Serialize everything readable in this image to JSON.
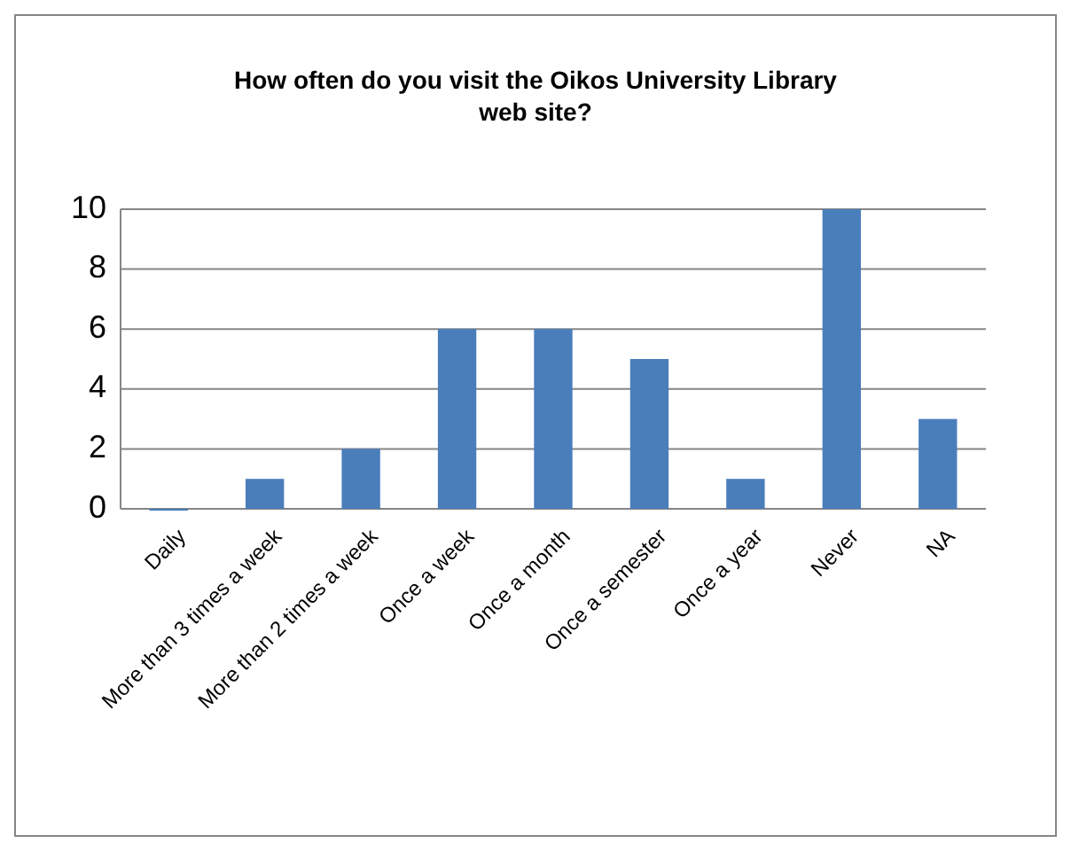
{
  "chart_data": {
    "type": "bar",
    "title": "How often do you visit the Oikos University Library web site?",
    "categories": [
      "Daily",
      "More than 3 times a week",
      "More than 2 times a week",
      "Once a week",
      "Once a month",
      "Once a semester",
      "Once a year",
      "Never",
      "NA"
    ],
    "values": [
      0,
      1,
      2,
      6,
      6,
      5,
      1,
      10,
      3
    ],
    "color": "#4a7ebb",
    "ylim": [
      0,
      10
    ],
    "yticks": [
      0,
      2,
      4,
      6,
      8,
      10
    ],
    "grid": "y"
  }
}
